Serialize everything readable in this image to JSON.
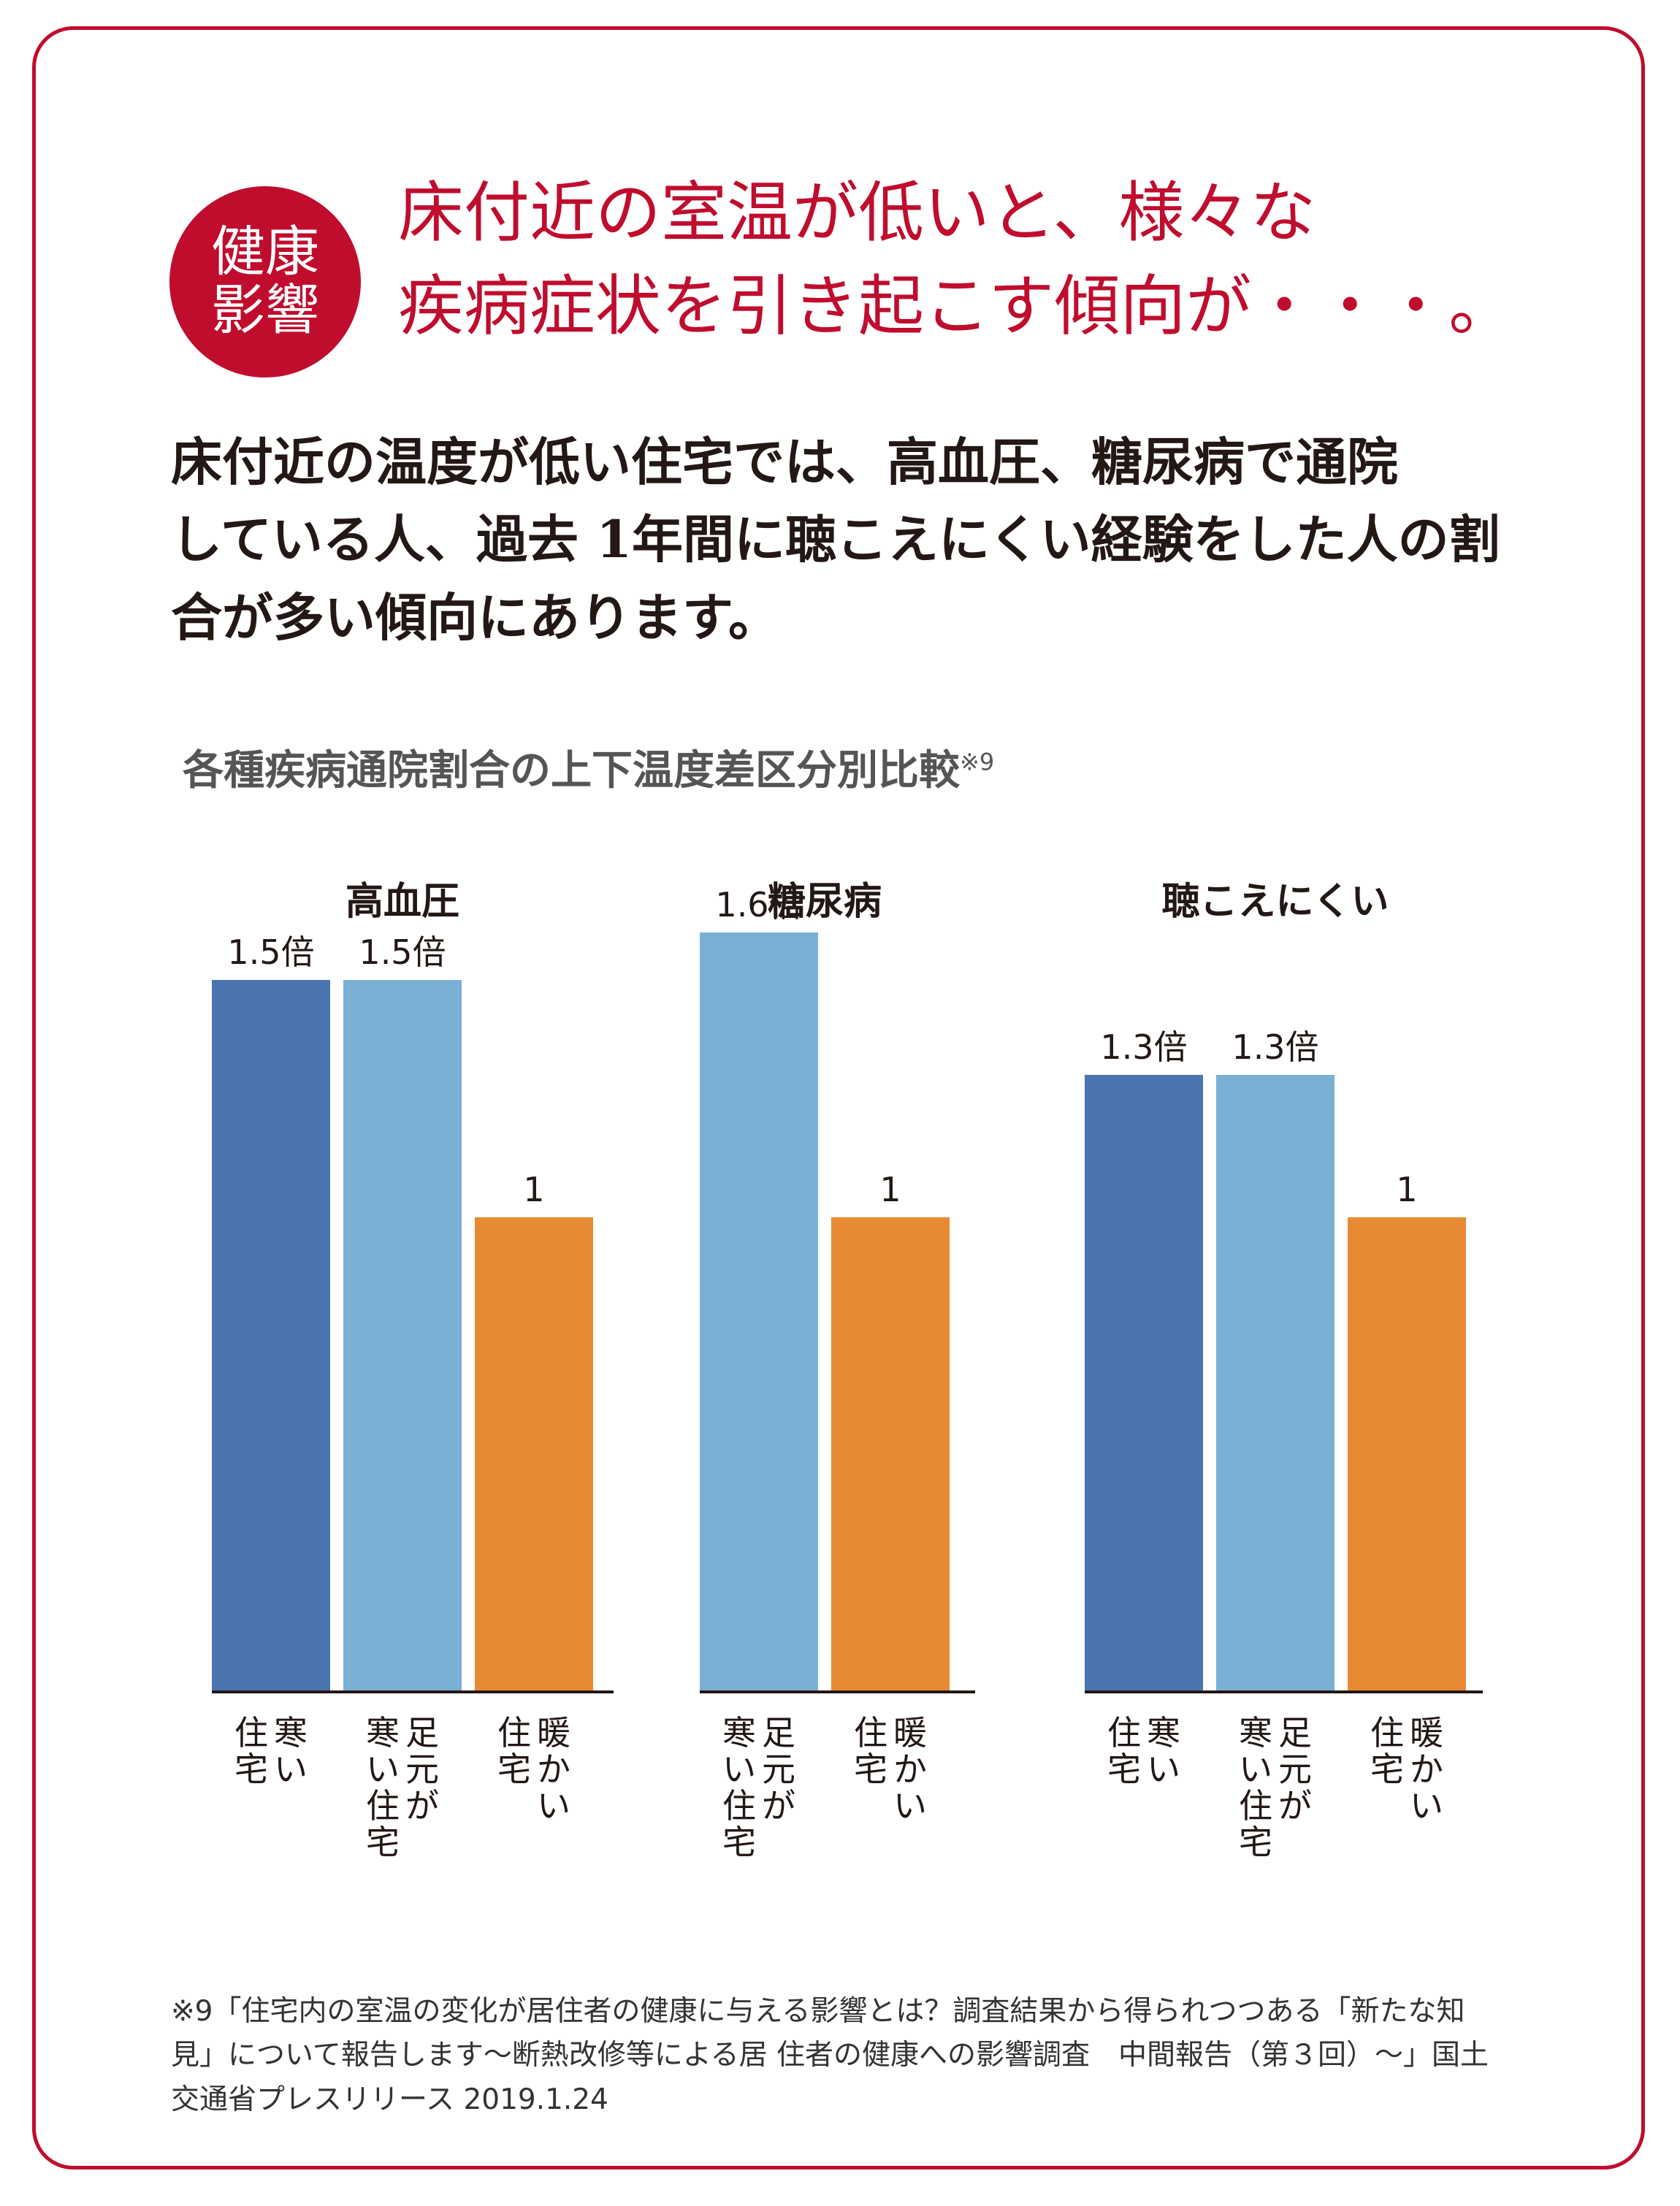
{
  "badge": {
    "line1": "健康",
    "line2": "影響"
  },
  "headline": {
    "line1": "床付近の室温が低いと、様々な",
    "line2": "疾病症状を引き起こす傾向が・・・。"
  },
  "body": {
    "line1": "床付近の温度が低い住宅では、高血圧、糖尿病で通院",
    "line2": "している人、過去 1年間に聴こえにくい経験をした人の割",
    "line3": "合が多い傾向にあります。"
  },
  "colors": {
    "accent": "#c00d2e",
    "cold_house": "#4a75b0",
    "cold_feet_house": "#7bafd4",
    "warm_house": "#e88a33",
    "text": "#231815"
  },
  "chart_data": {
    "type": "bar",
    "title": "各種疾病通院割合の上下温度差区分別比較",
    "title_note": "※9",
    "ylim": [
      0,
      1.8
    ],
    "groups": [
      {
        "name": "高血圧",
        "bars": [
          {
            "category": "寒い住宅",
            "label_lines": [
              "寒い",
              "住宅"
            ],
            "value": 1.5,
            "value_label": "1.5倍",
            "color_key": "cold_house"
          },
          {
            "category": "足元が寒い住宅",
            "label_lines": [
              "足元が",
              "寒い住宅"
            ],
            "value": 1.5,
            "value_label": "1.5倍",
            "color_key": "cold_feet_house"
          },
          {
            "category": "暖かい住宅",
            "label_lines": [
              "暖かい",
              "住宅"
            ],
            "value": 1.0,
            "value_label": "1",
            "color_key": "warm_house"
          }
        ]
      },
      {
        "name": "糖尿病",
        "bars": [
          {
            "category": "足元が寒い住宅",
            "label_lines": [
              "足元が",
              "寒い住宅"
            ],
            "value": 1.6,
            "value_label": "1.6倍",
            "color_key": "cold_feet_house"
          },
          {
            "category": "暖かい住宅",
            "label_lines": [
              "暖かい",
              "住宅"
            ],
            "value": 1.0,
            "value_label": "1",
            "color_key": "warm_house"
          }
        ]
      },
      {
        "name": "聴こえにくい",
        "bars": [
          {
            "category": "寒い住宅",
            "label_lines": [
              "寒い",
              "住宅"
            ],
            "value": 1.3,
            "value_label": "1.3倍",
            "color_key": "cold_house"
          },
          {
            "category": "足元が寒い住宅",
            "label_lines": [
              "足元が",
              "寒い住宅"
            ],
            "value": 1.3,
            "value_label": "1.3倍",
            "color_key": "cold_feet_house"
          },
          {
            "category": "暖かい住宅",
            "label_lines": [
              "暖かい",
              "住宅"
            ],
            "value": 1.0,
            "value_label": "1",
            "color_key": "warm_house"
          }
        ]
      }
    ]
  },
  "footnote": {
    "line1": "※9「住宅内の室温の変化が居住者の健康に与える影響とは？調査結果から得られつつある「新たな知",
    "line2": "見」について報告します〜断熱改修等による居 住者の健康への影響調査　中間報告（第３回）〜」国土",
    "line3": "交通省プレスリリース 2019.1.24"
  }
}
